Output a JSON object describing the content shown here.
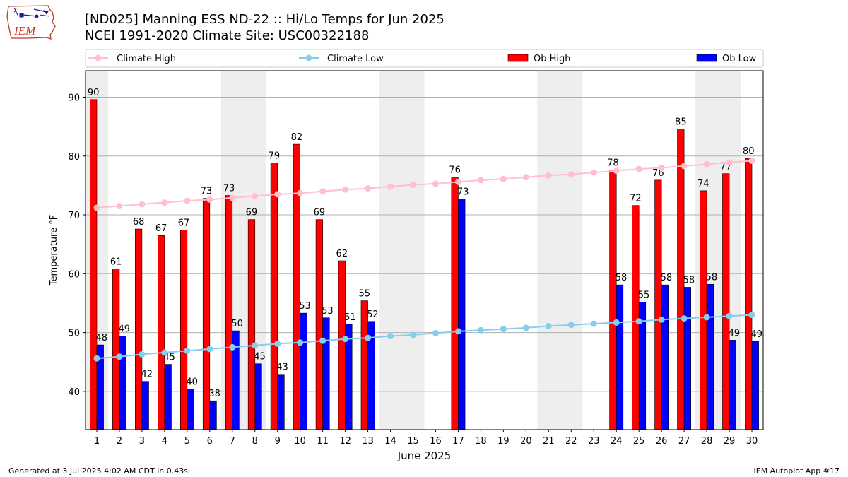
{
  "logo": {
    "text": "IEM"
  },
  "header": {
    "title": "[ND025] Manning ESS ND-22 :: Hi/Lo Temps for Jun 2025",
    "subtitle": "NCEI 1991-2020 Climate Site: USC00322188"
  },
  "footer": {
    "left": "Generated at 3 Jul 2025 4:02 AM CDT in 0.43s",
    "right": "IEM Autoplot App #17"
  },
  "colors": {
    "ob_high": "#ff0000",
    "ob_low": "#0000ff",
    "climate_high": "#ffc0cb",
    "climate_low": "#87ceeb",
    "weekend_shade": "#eeeeee"
  },
  "chart_data": {
    "type": "bar",
    "xlabel": "June 2025",
    "ylabel": "Temperature °F",
    "ylim": [
      33.5,
      94.5
    ],
    "yticks": [
      40,
      50,
      60,
      70,
      80,
      90
    ],
    "grid": "y",
    "legend_position": "top",
    "categories": [
      "1",
      "2",
      "3",
      "4",
      "5",
      "6",
      "7",
      "8",
      "9",
      "10",
      "11",
      "12",
      "13",
      "14",
      "15",
      "16",
      "17",
      "18",
      "19",
      "20",
      "21",
      "22",
      "23",
      "24",
      "25",
      "26",
      "27",
      "28",
      "29",
      "30"
    ],
    "shaded_days": [
      1,
      7,
      8,
      14,
      15,
      21,
      22,
      28,
      29
    ],
    "series": [
      {
        "name": "Ob High",
        "kind": "bar",
        "values": [
          89.6,
          60.8,
          67.6,
          66.5,
          67.4,
          72.8,
          73.3,
          69.2,
          78.8,
          82.0,
          69.2,
          62.2,
          55.4,
          null,
          null,
          null,
          76.4,
          null,
          null,
          null,
          null,
          null,
          null,
          77.6,
          71.6,
          75.9,
          84.6,
          74.1,
          77.0,
          79.6
        ],
        "labels": [
          "90",
          "61",
          "68",
          "67",
          "67",
          "73",
          "73",
          "69",
          "79",
          "82",
          "69",
          "62",
          "55",
          null,
          null,
          null,
          "76",
          null,
          null,
          null,
          null,
          null,
          null,
          "78",
          "72",
          "76",
          "85",
          "74",
          "77",
          "80"
        ]
      },
      {
        "name": "Ob Low",
        "kind": "bar",
        "values": [
          47.9,
          49.4,
          41.7,
          44.6,
          40.4,
          38.4,
          50.3,
          44.7,
          42.9,
          53.3,
          52.5,
          51.4,
          51.9,
          null,
          null,
          null,
          72.7,
          null,
          null,
          null,
          null,
          null,
          null,
          58.1,
          55.2,
          58.1,
          57.7,
          58.2,
          48.7,
          48.5
        ],
        "labels": [
          "48",
          "49",
          "42",
          "45",
          "40",
          "38",
          "50",
          "45",
          "43",
          "53",
          "53",
          "51",
          "52",
          null,
          null,
          null,
          "73",
          null,
          null,
          null,
          null,
          null,
          null,
          "58",
          "55",
          "58",
          "58",
          "58",
          "49",
          "49"
        ]
      },
      {
        "name": "Climate High",
        "kind": "line",
        "values": [
          71.2,
          71.5,
          71.8,
          72.1,
          72.4,
          72.6,
          72.9,
          73.2,
          73.5,
          73.7,
          74.0,
          74.3,
          74.5,
          74.8,
          75.1,
          75.3,
          75.6,
          75.9,
          76.1,
          76.4,
          76.7,
          76.9,
          77.2,
          77.5,
          77.8,
          78.0,
          78.3,
          78.6,
          78.9,
          79.2
        ]
      },
      {
        "name": "Climate Low",
        "kind": "line",
        "values": [
          45.6,
          45.9,
          46.3,
          46.6,
          46.9,
          47.2,
          47.5,
          47.8,
          48.1,
          48.3,
          48.6,
          48.9,
          49.1,
          49.4,
          49.6,
          49.9,
          50.2,
          50.4,
          50.6,
          50.8,
          51.1,
          51.3,
          51.5,
          51.7,
          51.9,
          52.2,
          52.4,
          52.6,
          52.8,
          53.0
        ]
      }
    ]
  }
}
